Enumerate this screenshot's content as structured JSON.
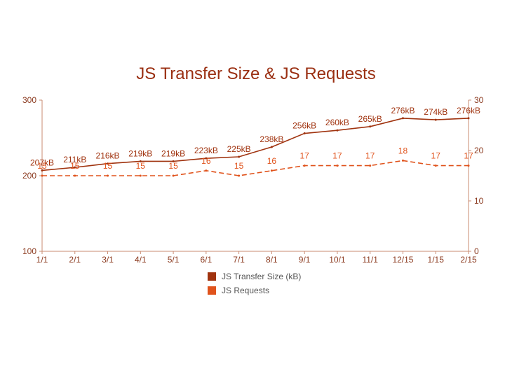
{
  "chart_data": {
    "type": "line",
    "title": "JS Transfer Size & JS Requests",
    "categories": [
      "1/1",
      "2/1",
      "3/1",
      "4/1",
      "5/1",
      "6/1",
      "7/1",
      "8/1",
      "9/1",
      "10/1",
      "11/1",
      "12/15",
      "1/15",
      "2/15"
    ],
    "left_axis": {
      "range": [
        100,
        300
      ],
      "ticks": [
        "100",
        "200",
        "300"
      ]
    },
    "right_axis": {
      "range": [
        0,
        30
      ],
      "ticks": [
        "0",
        "10",
        "20",
        "30"
      ]
    },
    "series": [
      {
        "name": "JS Transfer Size (kB)",
        "axis": "left",
        "color": "#a0330f",
        "style": "solid",
        "values": [
          207,
          211,
          216,
          219,
          219,
          223,
          225,
          238,
          256,
          260,
          265,
          276,
          274,
          276
        ],
        "labels": [
          "207kB",
          "211kB",
          "216kB",
          "219kB",
          "219kB",
          "223kB",
          "225kB",
          "238kB",
          "256kB",
          "260kB",
          "265kB",
          "276kB",
          "274kB",
          "276kB"
        ]
      },
      {
        "name": "JS Requests",
        "axis": "right",
        "color": "#e0531c",
        "style": "dashed",
        "values": [
          15,
          15,
          15,
          15,
          15,
          16,
          15,
          16,
          17,
          17,
          17,
          18,
          17,
          17
        ],
        "labels": [
          "15",
          "15",
          "15",
          "15",
          "15",
          "16",
          "15",
          "16",
          "17",
          "17",
          "17",
          "18",
          "17",
          "17"
        ]
      }
    ],
    "legend_position": "bottom"
  }
}
